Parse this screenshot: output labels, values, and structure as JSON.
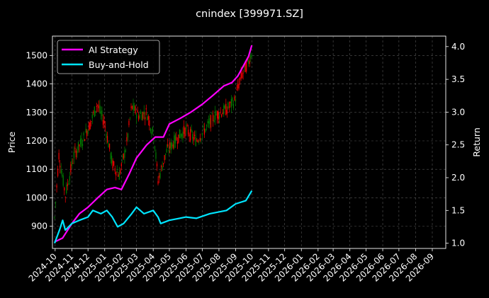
{
  "chart_data": {
    "type": "line",
    "title": "cnindex [399971.SZ]",
    "xlabel": "",
    "ylabel": "Price",
    "y2label": "Return",
    "grid": true,
    "legend_position": "top-left",
    "x_ticks": [
      "2024-10",
      "2024-11",
      "2024-12",
      "2025-01",
      "2025-02",
      "2025-03",
      "2025-04",
      "2025-05",
      "2025-06",
      "2025-07",
      "2025-08",
      "2025-09",
      "2025-10",
      "2025-11",
      "2025-12",
      "2026-01",
      "2026-02",
      "2026-03",
      "2026-04",
      "2026-05",
      "2026-06",
      "2026-07",
      "2026-08",
      "2026-09"
    ],
    "y_ticks": [
      900,
      1000,
      1100,
      1200,
      1300,
      1400,
      1500
    ],
    "y2_ticks": [
      "1.0",
      "1.5",
      "2.0",
      "2.5",
      "3.0",
      "3.5",
      "4.0"
    ],
    "xlim": [
      "2024-09-26",
      "2026-09-26"
    ],
    "ylim": [
      822,
      1568
    ],
    "y2lim": [
      0.92,
      4.16
    ],
    "up_color": "#008000",
    "down_color": "#ff0000",
    "series": [
      {
        "name": "AI Strategy",
        "axis": "right",
        "color": "#ff00ff",
        "points": [
          [
            "2024-09-30",
            1.02
          ],
          [
            "2024-10-15",
            1.08
          ],
          [
            "2024-11-01",
            1.3
          ],
          [
            "2024-11-15",
            1.45
          ],
          [
            "2024-12-01",
            1.55
          ],
          [
            "2024-12-20",
            1.7
          ],
          [
            "2025-01-05",
            1.82
          ],
          [
            "2025-01-20",
            1.85
          ],
          [
            "2025-02-01",
            1.82
          ],
          [
            "2025-02-15",
            2.05
          ],
          [
            "2025-03-01",
            2.3
          ],
          [
            "2025-03-20",
            2.5
          ],
          [
            "2025-04-05",
            2.62
          ],
          [
            "2025-04-20",
            2.62
          ],
          [
            "2025-05-01",
            2.82
          ],
          [
            "2025-05-20",
            2.9
          ],
          [
            "2025-06-10",
            3.0
          ],
          [
            "2025-07-01",
            3.12
          ],
          [
            "2025-07-20",
            3.25
          ],
          [
            "2025-08-10",
            3.4
          ],
          [
            "2025-08-25",
            3.45
          ],
          [
            "2025-09-05",
            3.55
          ],
          [
            "2025-09-15",
            3.7
          ],
          [
            "2025-09-25",
            3.85
          ],
          [
            "2025-10-01",
            4.02
          ]
        ]
      },
      {
        "name": "Buy-and-Hold",
        "axis": "right",
        "color": "#00e5ff",
        "points": [
          [
            "2024-09-30",
            1.0
          ],
          [
            "2024-10-10",
            1.22
          ],
          [
            "2024-10-15",
            1.35
          ],
          [
            "2024-10-20",
            1.2
          ],
          [
            "2024-11-01",
            1.3
          ],
          [
            "2024-11-15",
            1.35
          ],
          [
            "2024-12-01",
            1.4
          ],
          [
            "2024-12-10",
            1.5
          ],
          [
            "2024-12-25",
            1.45
          ],
          [
            "2025-01-05",
            1.5
          ],
          [
            "2025-01-15",
            1.4
          ],
          [
            "2025-01-25",
            1.25
          ],
          [
            "2025-02-05",
            1.3
          ],
          [
            "2025-02-20",
            1.45
          ],
          [
            "2025-03-01",
            1.55
          ],
          [
            "2025-03-15",
            1.45
          ],
          [
            "2025-04-01",
            1.5
          ],
          [
            "2025-04-10",
            1.4
          ],
          [
            "2025-04-15",
            1.3
          ],
          [
            "2025-05-01",
            1.35
          ],
          [
            "2025-06-01",
            1.4
          ],
          [
            "2025-06-20",
            1.38
          ],
          [
            "2025-07-15",
            1.45
          ],
          [
            "2025-08-15",
            1.5
          ],
          [
            "2025-09-01",
            1.6
          ],
          [
            "2025-09-20",
            1.65
          ],
          [
            "2025-10-01",
            1.8
          ]
        ]
      }
    ],
    "price_path": [
      [
        "2024-09-30",
        930
      ],
      [
        "2024-10-08",
        1150
      ],
      [
        "2024-10-20",
        1010
      ],
      [
        "2024-11-05",
        1150
      ],
      [
        "2024-11-20",
        1200
      ],
      [
        "2024-12-05",
        1260
      ],
      [
        "2024-12-18",
        1330
      ],
      [
        "2025-01-01",
        1260
      ],
      [
        "2025-01-15",
        1120
      ],
      [
        "2025-01-28",
        1080
      ],
      [
        "2025-02-10",
        1180
      ],
      [
        "2025-02-20",
        1320
      ],
      [
        "2025-03-05",
        1290
      ],
      [
        "2025-03-20",
        1300
      ],
      [
        "2025-04-03",
        1210
      ],
      [
        "2025-04-10",
        1060
      ],
      [
        "2025-04-25",
        1160
      ],
      [
        "2025-05-15",
        1210
      ],
      [
        "2025-06-01",
        1240
      ],
      [
        "2025-06-20",
        1200
      ],
      [
        "2025-07-10",
        1250
      ],
      [
        "2025-07-25",
        1290
      ],
      [
        "2025-08-15",
        1310
      ],
      [
        "2025-08-30",
        1340
      ],
      [
        "2025-09-10",
        1420
      ],
      [
        "2025-09-25",
        1480
      ],
      [
        "2025-10-01",
        1510
      ]
    ]
  }
}
